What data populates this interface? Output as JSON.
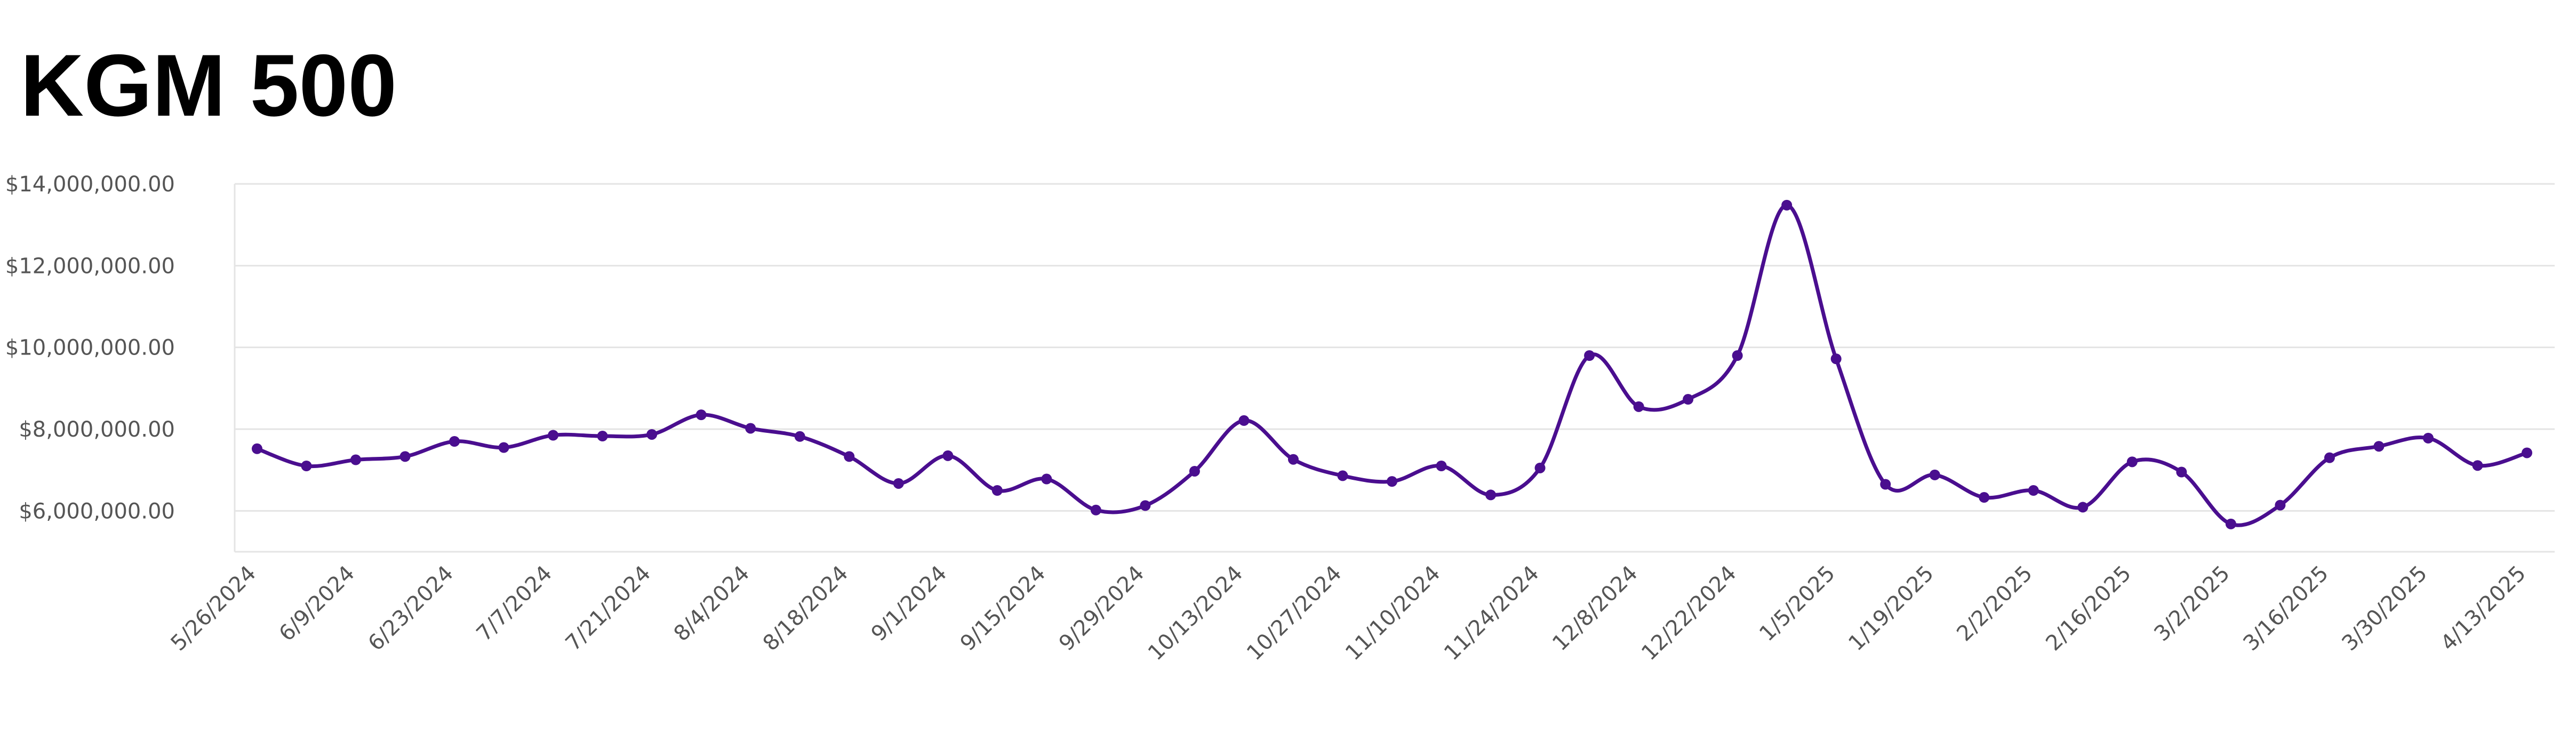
{
  "header": {
    "title": "KGM 500"
  },
  "chart_data": {
    "type": "line",
    "title": "KGM 500",
    "xlabel": "",
    "ylabel": "",
    "ylim": [
      5000000,
      14000000
    ],
    "grid": true,
    "y_ticks": [
      {
        "value": 6000000,
        "label": "$6,000,000.00"
      },
      {
        "value": 8000000,
        "label": "$8,000,000.00"
      },
      {
        "value": 10000000,
        "label": "$10,000,000.00"
      },
      {
        "value": 12000000,
        "label": "$12,000,000.00"
      },
      {
        "value": 14000000,
        "label": "$14,000,000.00"
      }
    ],
    "x_tick_labels": [
      "5/26/2024",
      "6/9/2024",
      "6/23/2024",
      "7/7/2024",
      "7/21/2024",
      "8/4/2024",
      "8/18/2024",
      "9/1/2024",
      "9/15/2024",
      "9/29/2024",
      "10/13/2024",
      "10/27/2024",
      "11/10/2024",
      "11/24/2024",
      "12/8/2024",
      "12/22/2024",
      "1/5/2025",
      "1/19/2025",
      "2/2/2025",
      "2/16/2025",
      "3/2/2025",
      "3/16/2025",
      "3/30/2025",
      "4/13/2025"
    ],
    "x": [
      "5/26/2024",
      "6/2/2024",
      "6/9/2024",
      "6/16/2024",
      "6/23/2024",
      "6/30/2024",
      "7/7/2024",
      "7/14/2024",
      "7/21/2024",
      "7/28/2024",
      "8/4/2024",
      "8/11/2024",
      "8/18/2024",
      "8/25/2024",
      "9/1/2024",
      "9/8/2024",
      "9/15/2024",
      "9/22/2024",
      "9/29/2024",
      "10/6/2024",
      "10/13/2024",
      "10/20/2024",
      "10/27/2024",
      "11/3/2024",
      "11/10/2024",
      "11/17/2024",
      "11/24/2024",
      "12/1/2024",
      "12/8/2024",
      "12/15/2024",
      "12/22/2024",
      "12/29/2024",
      "1/5/2025",
      "1/12/2025",
      "1/19/2025",
      "1/26/2025",
      "2/2/2025",
      "2/9/2025",
      "2/16/2025",
      "2/23/2025",
      "3/2/2025",
      "3/9/2025",
      "3/16/2025",
      "3/23/2025",
      "3/30/2025",
      "4/6/2025",
      "4/13/2025"
    ],
    "series": [
      {
        "color": "#4a0e8f",
        "values": [
          7520000,
          7100000,
          7250000,
          7330000,
          7700000,
          7550000,
          7850000,
          7830000,
          7870000,
          8350000,
          8020000,
          7820000,
          7330000,
          6670000,
          7350000,
          6500000,
          6780000,
          6020000,
          6130000,
          6970000,
          8210000,
          7260000,
          6860000,
          6720000,
          7100000,
          6390000,
          7050000,
          9800000,
          8550000,
          8730000,
          9800000,
          13480000,
          9720000,
          6650000,
          6880000,
          6330000,
          6500000,
          6090000,
          7200000,
          6950000,
          5680000,
          6140000,
          7300000,
          7580000,
          7780000,
          7110000,
          7420000
        ]
      }
    ]
  }
}
